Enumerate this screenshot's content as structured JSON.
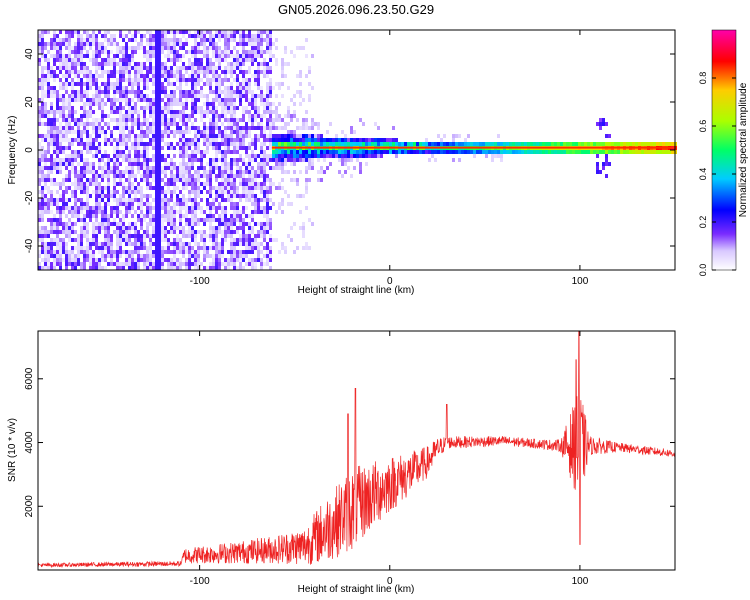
{
  "title": "GN05.2026.096.23.50.G29",
  "colorbar": {
    "label": "Normalized spectral amplitude",
    "ticks": [
      "0.0",
      "0.2",
      "0.4",
      "0.6",
      "0.8"
    ],
    "tick_values": [
      0.0,
      0.2,
      0.4,
      0.6,
      0.8
    ],
    "range": [
      0,
      1
    ],
    "colors": [
      "#ffffff",
      "#d8c8ff",
      "#7a2cff",
      "#0000ff",
      "#00ccff",
      "#00ff66",
      "#aaff00",
      "#ffcc00",
      "#ff0000",
      "#ff00aa"
    ]
  },
  "chart_data": [
    {
      "type": "heatmap",
      "xlabel": "Height of straight line (km)",
      "ylabel": "Frequency (Hz)",
      "xlim": [
        -185,
        150
      ],
      "ylim": [
        -50,
        50
      ],
      "x_ticks": [
        "-100",
        "0",
        "100"
      ],
      "x_tick_values": [
        -100,
        0,
        100
      ],
      "y_ticks": [
        "-40",
        "-20",
        "0",
        "20",
        "40"
      ],
      "y_tick_values": [
        -40,
        -20,
        0,
        20,
        40
      ],
      "regions": [
        {
          "x_from": -185,
          "x_to": -62,
          "description_level": 0.15,
          "freq_spread": [
            -50,
            50
          ]
        },
        {
          "x_from": -62,
          "x_to": 20,
          "description_level": 0.35,
          "freq_spread": [
            -6,
            6
          ]
        },
        {
          "x_from": 20,
          "x_to": 150,
          "description_level": 0.8,
          "freq_spread": [
            -2,
            2
          ]
        }
      ],
      "ridge_frequency": 1.0
    },
    {
      "type": "line",
      "xlabel": "Height of straight line (km)",
      "ylabel": "SNR (10 * v/v)",
      "xlim": [
        -185,
        150
      ],
      "ylim": [
        0,
        7500
      ],
      "x_ticks": [
        "-100",
        "0",
        "100"
      ],
      "x_tick_values": [
        -100,
        0,
        100
      ],
      "y_ticks": [
        "2000",
        "4000",
        "6000"
      ],
      "y_tick_values": [
        2000,
        4000,
        6000
      ],
      "color": "#ee2222",
      "envelope": [
        {
          "x": -185,
          "mean": 150,
          "spread": 60
        },
        {
          "x": -110,
          "mean": 200,
          "spread": 80
        },
        {
          "x": -108,
          "mean": 450,
          "spread": 250
        },
        {
          "x": -80,
          "mean": 550,
          "spread": 350
        },
        {
          "x": -60,
          "mean": 650,
          "spread": 450
        },
        {
          "x": -45,
          "mean": 750,
          "spread": 600
        },
        {
          "x": -35,
          "mean": 1200,
          "spread": 1000
        },
        {
          "x": -20,
          "mean": 1900,
          "spread": 1300
        },
        {
          "x": -10,
          "mean": 2300,
          "spread": 1100
        },
        {
          "x": 0,
          "mean": 2700,
          "spread": 900
        },
        {
          "x": 10,
          "mean": 3000,
          "spread": 700
        },
        {
          "x": 20,
          "mean": 3400,
          "spread": 500
        },
        {
          "x": 25,
          "mean": 3800,
          "spread": 350
        },
        {
          "x": 30,
          "mean": 4000,
          "spread": 200
        },
        {
          "x": 60,
          "mean": 4050,
          "spread": 150
        },
        {
          "x": 80,
          "mean": 3950,
          "spread": 150
        },
        {
          "x": 90,
          "mean": 3900,
          "spread": 200
        },
        {
          "x": 96,
          "mean": 3900,
          "spread": 1200
        },
        {
          "x": 100,
          "mean": 3900,
          "spread": 1800
        },
        {
          "x": 105,
          "mean": 3900,
          "spread": 300
        },
        {
          "x": 120,
          "mean": 3850,
          "spread": 150
        },
        {
          "x": 150,
          "mean": 3650,
          "spread": 120
        }
      ],
      "spikes": [
        {
          "x": -18,
          "y": 5700
        },
        {
          "x": -22,
          "y": 4900
        },
        {
          "x": 98,
          "y": 6600
        },
        {
          "x": 99.5,
          "y": 7500
        },
        {
          "x": 100,
          "y": 800
        },
        {
          "x": 30,
          "y": 5200
        }
      ]
    }
  ]
}
